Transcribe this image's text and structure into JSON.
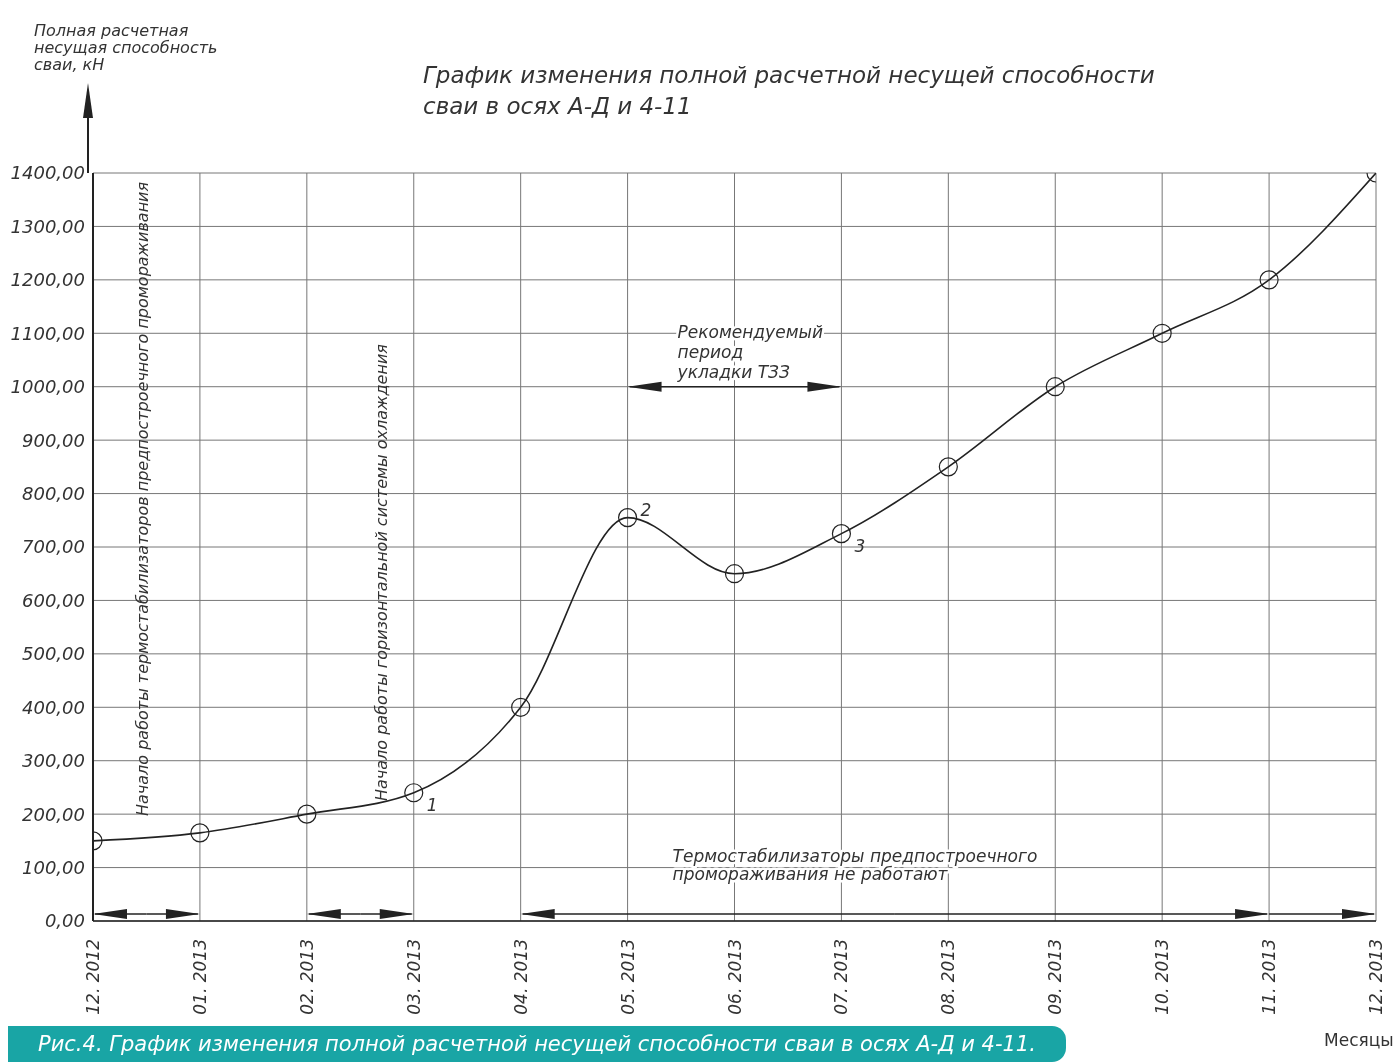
{
  "chart_data": {
    "type": "line",
    "title": "График изменения полной расчетной несущей способности\nсваи в осях А-Д и 4-11",
    "xlabel": "Месяцы",
    "categories": [
      "12. 2012",
      "01. 2013",
      "02. 2013",
      "03. 2013",
      "04. 2013",
      "05. 2013",
      "06. 2013",
      "07. 2013",
      "08. 2013",
      "09. 2013",
      "10. 2013",
      "11. 2013",
      "12. 2013"
    ],
    "series": [
      {
        "color": "#222222",
        "values": [
          150,
          165,
          200,
          240,
          400,
          755,
          650,
          725,
          850,
          1000,
          1100,
          1200,
          1400
        ]
      }
    ],
    "ylim": [
      0,
      1400
    ],
    "yticks": [
      {
        "value": 0,
        "label": "0,00"
      },
      {
        "value": 100,
        "label": "100,00"
      },
      {
        "value": 200,
        "label": "200,00"
      },
      {
        "value": 300,
        "label": "300,00"
      },
      {
        "value": 400,
        "label": "400,00"
      },
      {
        "value": 500,
        "label": "500,00"
      },
      {
        "value": 600,
        "label": "600,00"
      },
      {
        "value": 700,
        "label": "700,00"
      },
      {
        "value": 800,
        "label": "800,00"
      },
      {
        "value": 900,
        "label": "900,00"
      },
      {
        "value": 1000,
        "label": "1000,00"
      },
      {
        "value": 1100,
        "label": "1100,00"
      },
      {
        "value": 1200,
        "label": "1200,00"
      },
      {
        "value": 1300,
        "label": "1300,00"
      },
      {
        "value": 1400,
        "label": "1400,00"
      }
    ],
    "annotations": [
      "Начало работы термостабилизаторов предпостроечного промораживания",
      "Начало работы горизонтальной системы охлаждения",
      {
        "text": "1",
        "x": "03. 2013",
        "y": 240
      },
      {
        "text": "2",
        "x": "05. 2013",
        "y": 755
      },
      {
        "text": "3",
        "x": "07. 2013",
        "y": 725
      },
      "Рекомендуемый\nпериод\nукладки ТЗЗ",
      "Термостабилизаторы предпостроечного\nпромораживания не работают",
      "Рис.4. График изменения полной расчетной несущей способности сваи в осях А-Д и 4-11.",
      "Полная расчетная\nнесущая способность\nсваи, кН"
    ],
    "grid": true,
    "marker": "circle",
    "line_style": "solid"
  }
}
